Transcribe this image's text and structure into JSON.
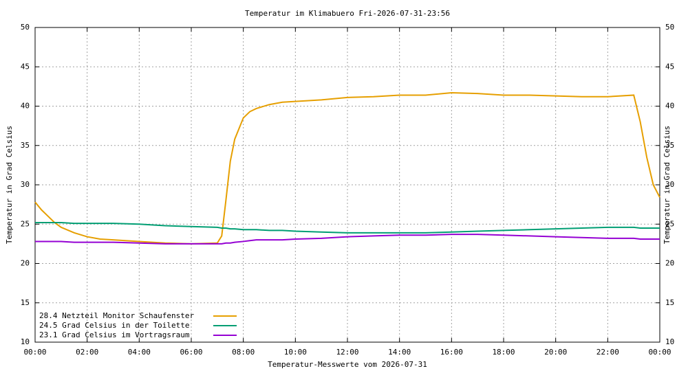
{
  "chart_data": {
    "type": "line",
    "title": "Temperatur im Klimabuero Fri-2026-07-31-23:56",
    "xlabel": "Temperatur-Messwerte vom 2026-07-31",
    "ylabel": "Temperatur in Grad Celsius",
    "y2label": "Temperatur in Grad Celsius",
    "x": [
      0,
      0.25,
      0.5,
      0.75,
      1,
      1.5,
      2,
      2.5,
      3,
      4,
      5,
      6,
      7,
      7.17,
      7.33,
      7.5,
      7.67,
      8,
      8.25,
      8.5,
      9,
      9.5,
      10,
      11,
      12,
      13,
      14,
      15,
      16,
      17,
      18,
      19,
      20,
      21,
      22,
      23,
      23.25,
      23.5,
      23.75,
      24
    ],
    "series": [
      {
        "name": "28.4 Netzteil Monitor Schaufenster",
        "color": "#e69f00",
        "values": [
          27.8,
          26.8,
          26.0,
          25.2,
          24.6,
          23.9,
          23.4,
          23.1,
          23.0,
          22.8,
          22.6,
          22.5,
          22.6,
          23.5,
          28,
          33,
          35.8,
          38.5,
          39.3,
          39.7,
          40.2,
          40.5,
          40.6,
          40.8,
          41.1,
          41.2,
          41.4,
          41.4,
          41.7,
          41.6,
          41.4,
          41.4,
          41.3,
          41.2,
          41.2,
          41.4,
          38,
          33.5,
          30,
          28.4
        ]
      },
      {
        "name": "24.5 Grad Celsius in der Toilette",
        "color": "#009e73",
        "values": [
          25.2,
          25.2,
          25.2,
          25.2,
          25.2,
          25.1,
          25.1,
          25.1,
          25.1,
          25.0,
          24.8,
          24.7,
          24.6,
          24.5,
          24.5,
          24.4,
          24.4,
          24.3,
          24.3,
          24.3,
          24.2,
          24.2,
          24.1,
          24.0,
          23.9,
          23.9,
          23.9,
          23.9,
          24.0,
          24.1,
          24.2,
          24.3,
          24.4,
          24.5,
          24.6,
          24.6,
          24.5,
          24.5,
          24.5,
          24.5
        ]
      },
      {
        "name": "23.1 Grad Celsius im Vortragsraum",
        "color": "#9400d3",
        "values": [
          22.8,
          22.8,
          22.8,
          22.8,
          22.8,
          22.7,
          22.7,
          22.7,
          22.7,
          22.6,
          22.5,
          22.5,
          22.5,
          22.5,
          22.6,
          22.6,
          22.7,
          22.8,
          22.9,
          23.0,
          23.0,
          23.0,
          23.1,
          23.2,
          23.4,
          23.5,
          23.6,
          23.6,
          23.7,
          23.7,
          23.6,
          23.5,
          23.4,
          23.3,
          23.2,
          23.2,
          23.1,
          23.1,
          23.1,
          23.1
        ]
      }
    ],
    "xlim": [
      0,
      24
    ],
    "xticks": [
      {
        "value": 0,
        "label": "00:00"
      },
      {
        "value": 2,
        "label": "02:00"
      },
      {
        "value": 4,
        "label": "04:00"
      },
      {
        "value": 6,
        "label": "06:00"
      },
      {
        "value": 8,
        "label": "08:00"
      },
      {
        "value": 10,
        "label": "10:00"
      },
      {
        "value": 12,
        "label": "12:00"
      },
      {
        "value": 14,
        "label": "14:00"
      },
      {
        "value": 16,
        "label": "16:00"
      },
      {
        "value": 18,
        "label": "18:00"
      },
      {
        "value": 20,
        "label": "20:00"
      },
      {
        "value": 22,
        "label": "22:00"
      },
      {
        "value": 24,
        "label": "00:00"
      }
    ],
    "ylim": [
      10,
      50
    ],
    "yticks": [
      10,
      15,
      20,
      25,
      30,
      35,
      40,
      45,
      50
    ],
    "y2lim": [
      10,
      50
    ],
    "y2ticks": [
      10,
      15,
      20,
      25,
      30,
      35,
      40,
      45,
      50
    ],
    "grid": true,
    "legend": "bottom-left"
  }
}
